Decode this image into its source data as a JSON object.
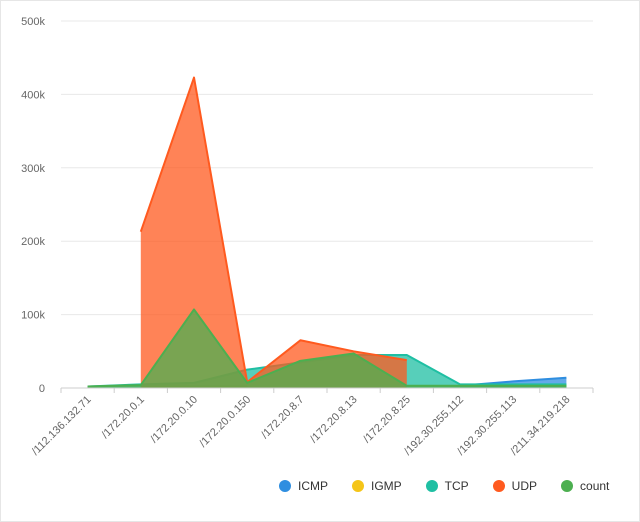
{
  "chart_data": {
    "type": "area",
    "title": "",
    "xlabel": "",
    "ylabel": "",
    "categories": [
      "/112.136.132.71",
      "/172.20.0.1",
      "/172.20.0.10",
      "/172.20.0.150",
      "/172.20.8.7",
      "/172.20.8.13",
      "/172.20.8.25",
      "/192.30.255.112",
      "/192.30.255.113",
      "/211.34.219.218"
    ],
    "ylim": [
      0,
      500000
    ],
    "yticks": [
      0,
      100000,
      200000,
      300000,
      400000,
      500000
    ],
    "ytick_labels": [
      "0",
      "100k",
      "200k",
      "300k",
      "400k",
      "500k"
    ],
    "grid": true,
    "legend_position": "bottom-right",
    "series": [
      {
        "name": "ICMP",
        "color": "#2f8ee0",
        "values": [
          null,
          null,
          null,
          null,
          null,
          null,
          null,
          3000,
          9000,
          14000
        ]
      },
      {
        "name": "IGMP",
        "color": "#f5c518",
        "values": [
          null,
          2000,
          2000,
          2000,
          null,
          null,
          null,
          null,
          null,
          null
        ]
      },
      {
        "name": "TCP",
        "color": "#1fbfa3",
        "values": [
          2000,
          5000,
          7000,
          25000,
          35000,
          45000,
          45000,
          5000,
          5000,
          5000
        ]
      },
      {
        "name": "UDP",
        "color": "#ff5a1f",
        "values": [
          null,
          213000,
          423000,
          8000,
          65000,
          50000,
          38000,
          null,
          null,
          null
        ]
      },
      {
        "name": "count",
        "color": "#4caf50",
        "values": [
          2000,
          4000,
          107000,
          7000,
          37000,
          47000,
          3000,
          3000,
          3000,
          3000
        ]
      }
    ]
  }
}
